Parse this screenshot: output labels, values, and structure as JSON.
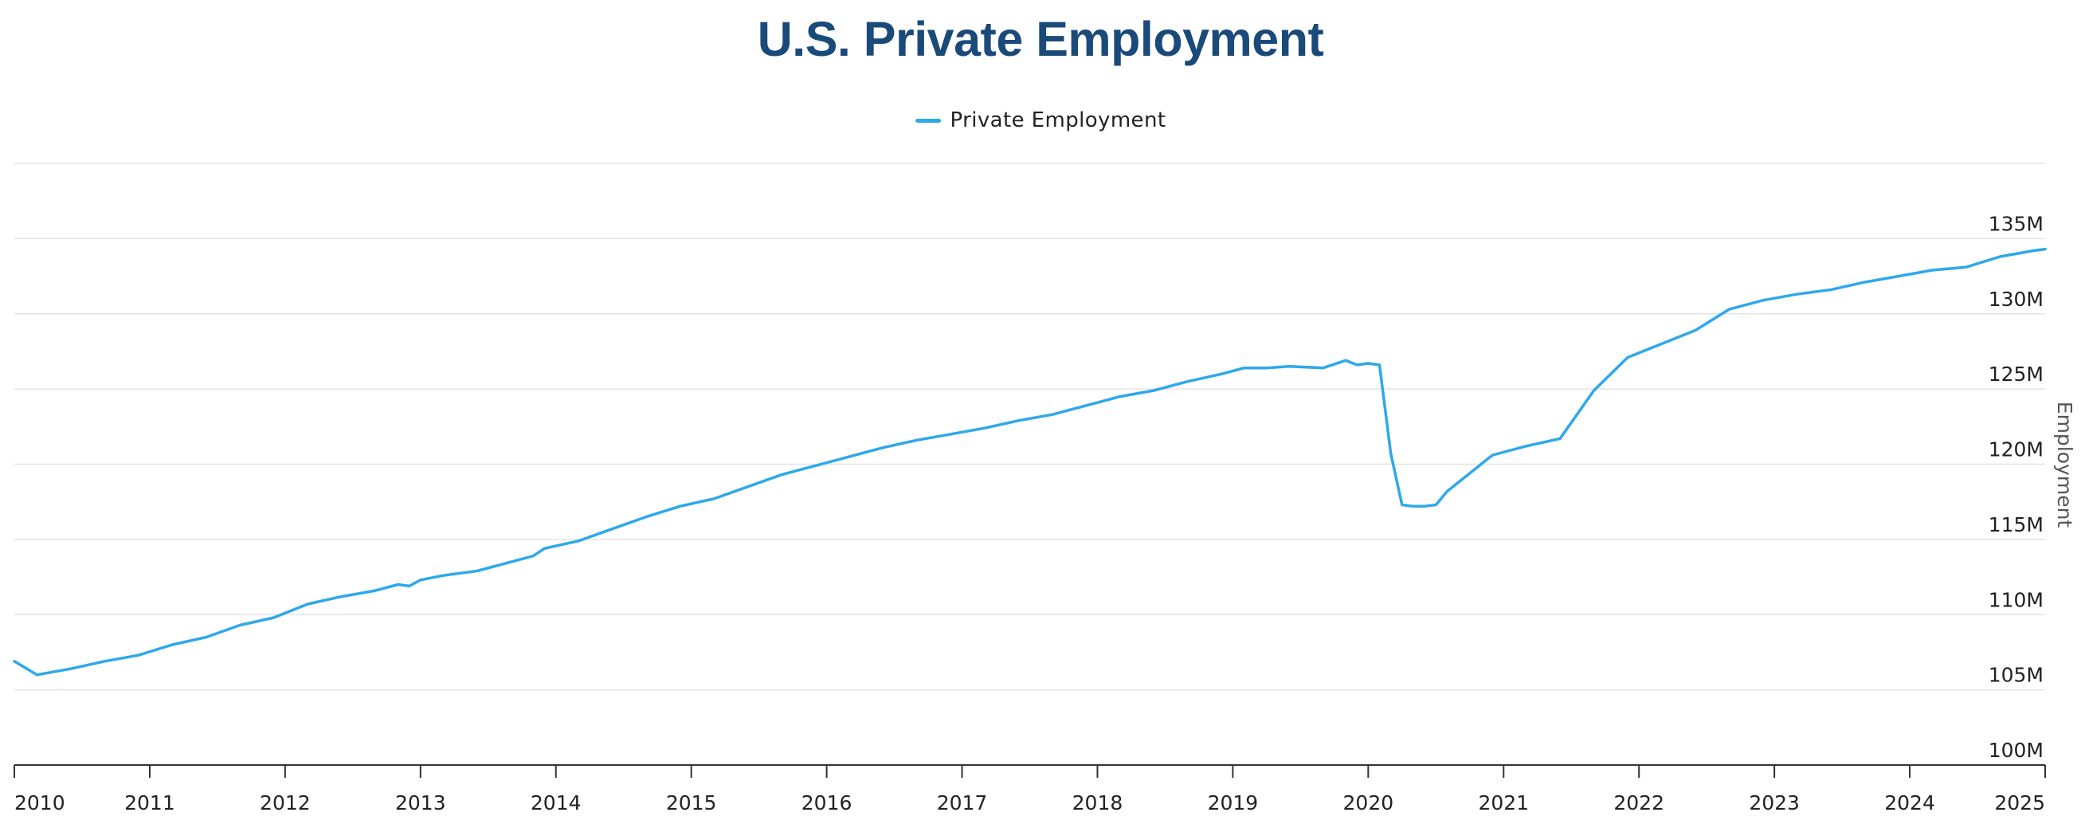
{
  "chart_data": {
    "type": "line",
    "title": "U.S. Private Employment",
    "xlabel": "",
    "ylabel": "Employment",
    "legend_position": "top-center",
    "grid": "horizontal",
    "y_axis_side": "right",
    "color": "#2ea8ec",
    "xlim": [
      "2010-01",
      "2025-01"
    ],
    "ylim": [
      100,
      140
    ],
    "x_ticks": [
      "2010",
      "2011",
      "2012",
      "2013",
      "2014",
      "2015",
      "2016",
      "2017",
      "2018",
      "2019",
      "2020",
      "2021",
      "2022",
      "2023",
      "2024",
      "2025"
    ],
    "y_ticks": [
      "100M",
      "105M",
      "110M",
      "115M",
      "120M",
      "125M",
      "130M",
      "135M"
    ],
    "y_tick_values": [
      100,
      105,
      110,
      115,
      120,
      125,
      130,
      135
    ],
    "series": [
      {
        "name": "Private Employment",
        "unit": "millions",
        "x": [
          "2010-01",
          "2010-03",
          "2010-06",
          "2010-09",
          "2010-12",
          "2011-03",
          "2011-06",
          "2011-09",
          "2011-12",
          "2012-03",
          "2012-06",
          "2012-09",
          "2012-11",
          "2012-12",
          "2013-01",
          "2013-03",
          "2013-06",
          "2013-09",
          "2013-11",
          "2013-12",
          "2014-03",
          "2014-06",
          "2014-09",
          "2014-12",
          "2015-03",
          "2015-06",
          "2015-09",
          "2015-12",
          "2016-03",
          "2016-06",
          "2016-09",
          "2016-12",
          "2017-03",
          "2017-06",
          "2017-09",
          "2017-12",
          "2018-03",
          "2018-06",
          "2018-09",
          "2018-12",
          "2019-02",
          "2019-04",
          "2019-06",
          "2019-09",
          "2019-11",
          "2019-12",
          "2020-01",
          "2020-02",
          "2020-03",
          "2020-04",
          "2020-05",
          "2020-06",
          "2020-07",
          "2020-08",
          "2020-09",
          "2020-12",
          "2021-03",
          "2021-06",
          "2021-09",
          "2021-12",
          "2022-03",
          "2022-06",
          "2022-09",
          "2022-12",
          "2023-03",
          "2023-06",
          "2023-09",
          "2023-12",
          "2024-03",
          "2024-06",
          "2024-09",
          "2024-12",
          "2025-01"
        ],
        "values": [
          106.9,
          106.0,
          106.4,
          106.9,
          107.3,
          108.0,
          108.5,
          109.3,
          109.8,
          110.7,
          111.2,
          111.6,
          112.0,
          111.9,
          112.3,
          112.6,
          112.9,
          113.5,
          113.9,
          114.4,
          114.9,
          115.7,
          116.5,
          117.2,
          117.7,
          118.5,
          119.3,
          119.9,
          120.5,
          121.1,
          121.6,
          122.0,
          122.4,
          122.9,
          123.3,
          123.9,
          124.5,
          124.9,
          125.5,
          126.0,
          126.4,
          126.4,
          126.5,
          126.4,
          126.9,
          126.6,
          126.7,
          126.6,
          120.7,
          117.3,
          117.2,
          117.2,
          117.3,
          118.2,
          118.8,
          120.6,
          121.2,
          121.7,
          124.9,
          127.1,
          128.0,
          128.9,
          130.3,
          130.9,
          131.3,
          131.6,
          132.1,
          132.5,
          132.9,
          133.1,
          133.8,
          134.2,
          134.3
        ]
      }
    ]
  }
}
